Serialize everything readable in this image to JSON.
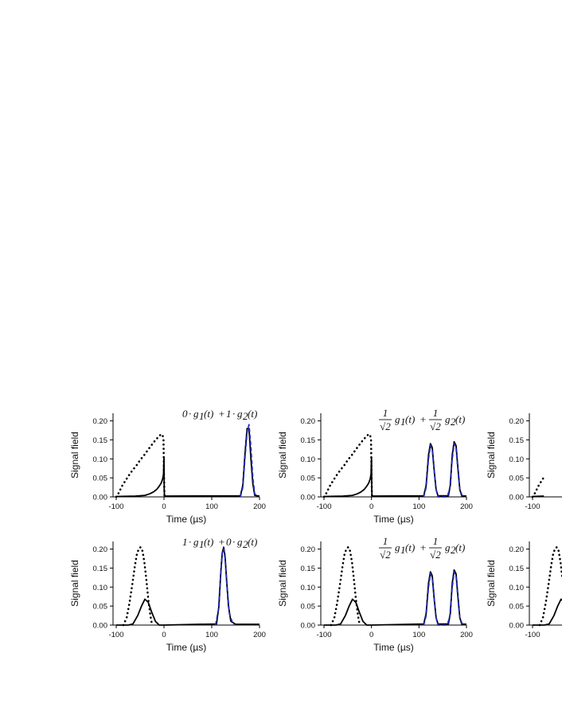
{
  "chart_data": [
    {
      "type": "line",
      "panel": "top-left",
      "formula": [
        "0",
        "·",
        "g",
        "1",
        "(t)",
        "+",
        "1",
        "·",
        "g",
        "2",
        "(t)"
      ],
      "xlabel": "Time (µs)",
      "ylabel": "Signal field",
      "xlim": [
        -100,
        200
      ],
      "ylim": [
        0,
        0.22
      ],
      "xticks": [
        "-100",
        "0",
        "100",
        "200"
      ],
      "yticks": [
        "0.00",
        "0.05",
        "0.10",
        "0.15",
        "0.20"
      ],
      "series": [
        {
          "style": "dotted",
          "color": "#000000",
          "x": [
            -100,
            -97,
            -93,
            -88,
            -82,
            -76,
            -70,
            -64,
            -58,
            -52,
            -46,
            -40,
            -34,
            -28,
            -22,
            -16,
            -10,
            -6,
            -3,
            -1,
            0,
            1
          ],
          "y": [
            0.0,
            0.005,
            0.015,
            0.028,
            0.04,
            0.052,
            0.063,
            0.073,
            0.082,
            0.093,
            0.103,
            0.112,
            0.123,
            0.133,
            0.143,
            0.152,
            0.16,
            0.165,
            0.163,
            0.15,
            0.06,
            0.0
          ]
        },
        {
          "style": "solid",
          "color": "#000000",
          "x": [
            -100,
            -60,
            -40,
            -30,
            -22,
            -15,
            -10,
            -6,
            -3,
            -1,
            0,
            0.5,
            1,
            160,
            165,
            170,
            174,
            178,
            182,
            186,
            190,
            200
          ],
          "y": [
            0.001,
            0.002,
            0.004,
            0.008,
            0.013,
            0.02,
            0.028,
            0.036,
            0.046,
            0.06,
            0.105,
            0.02,
            0.002,
            0.003,
            0.03,
            0.12,
            0.18,
            0.18,
            0.1,
            0.035,
            0.004,
            0.002
          ]
        },
        {
          "style": "dashed",
          "color": "#1f2ac8",
          "x": [
            160,
            165,
            170,
            174,
            178,
            182,
            186,
            190,
            196
          ],
          "y": [
            0.0,
            0.025,
            0.11,
            0.17,
            0.19,
            0.13,
            0.05,
            0.008,
            0.0
          ]
        }
      ]
    },
    {
      "type": "line",
      "panel": "top-middle",
      "formula": [
        "1",
        "√2",
        "g",
        "1",
        "(t)",
        "+",
        "1",
        "√2",
        "g",
        "2",
        "(t)"
      ],
      "xlabel": "Time (µs)",
      "ylabel": "Signal field",
      "xlim": [
        -100,
        200
      ],
      "ylim": [
        0,
        0.22
      ],
      "xticks": [
        "-100",
        "0",
        "100",
        "200"
      ],
      "yticks": [
        "0.00",
        "0.05",
        "0.10",
        "0.15",
        "0.20"
      ],
      "series": [
        {
          "style": "dotted",
          "color": "#000000",
          "x": [
            -100,
            -97,
            -93,
            -88,
            -82,
            -76,
            -70,
            -64,
            -58,
            -52,
            -46,
            -40,
            -34,
            -28,
            -22,
            -16,
            -10,
            -6,
            -3,
            -1,
            0,
            1
          ],
          "y": [
            0.0,
            0.005,
            0.015,
            0.028,
            0.04,
            0.052,
            0.063,
            0.073,
            0.082,
            0.093,
            0.103,
            0.112,
            0.123,
            0.133,
            0.143,
            0.152,
            0.16,
            0.165,
            0.163,
            0.15,
            0.06,
            0.0
          ]
        },
        {
          "style": "solid",
          "color": "#000000",
          "x": [
            -100,
            -60,
            -40,
            -30,
            -22,
            -15,
            -10,
            -6,
            -3,
            -1,
            0,
            0.5,
            1,
            110,
            115,
            120,
            124,
            128,
            132,
            136,
            140,
            162,
            166,
            170,
            174,
            178,
            182,
            186,
            190,
            200
          ],
          "y": [
            0.001,
            0.002,
            0.004,
            0.008,
            0.013,
            0.02,
            0.028,
            0.036,
            0.046,
            0.06,
            0.105,
            0.02,
            0.002,
            0.003,
            0.03,
            0.11,
            0.14,
            0.13,
            0.07,
            0.02,
            0.003,
            0.003,
            0.03,
            0.11,
            0.145,
            0.135,
            0.075,
            0.02,
            0.003,
            0.002
          ]
        },
        {
          "style": "dashed",
          "color": "#1f2ac8",
          "x": [
            110,
            115,
            120,
            124,
            128,
            132,
            136,
            140,
            160,
            165,
            170,
            174,
            178,
            182,
            186,
            192
          ],
          "y": [
            0.0,
            0.025,
            0.1,
            0.135,
            0.125,
            0.07,
            0.02,
            0.0,
            0.0,
            0.025,
            0.1,
            0.14,
            0.13,
            0.07,
            0.02,
            0.0
          ]
        }
      ]
    },
    {
      "type": "line",
      "panel": "top-right",
      "xlim": [
        -100,
        200
      ],
      "ylim": [
        0,
        0.22
      ],
      "xticks": [
        "-100"
      ],
      "yticks": [
        "0.00",
        "0.05",
        "0.10",
        "0.15",
        "0.20"
      ],
      "ylabel": "Signal field",
      "series": [
        {
          "style": "dotted",
          "color": "#000000",
          "x": [
            -100,
            -97,
            -93,
            -88,
            -82,
            -76
          ],
          "y": [
            0.0,
            0.005,
            0.015,
            0.028,
            0.04,
            0.052
          ]
        },
        {
          "style": "solid",
          "color": "#000000",
          "x": [
            -100,
            -76
          ],
          "y": [
            0.001,
            0.002
          ]
        }
      ]
    },
    {
      "type": "line",
      "panel": "bottom-left",
      "formula": [
        "1",
        "·",
        "g",
        "1",
        "(t)",
        "+",
        "0",
        "·",
        "g",
        "2",
        "(t)"
      ],
      "xlabel": "Time (µs)",
      "ylabel": "Signal field",
      "xlim": [
        -100,
        200
      ],
      "ylim": [
        0,
        0.22
      ],
      "xticks": [
        "-100",
        "0",
        "100",
        "200"
      ],
      "yticks": [
        "0.00",
        "0.05",
        "0.10",
        "0.15",
        "0.20"
      ],
      "series": [
        {
          "style": "dotted",
          "color": "#000000",
          "x": [
            -85,
            -78,
            -72,
            -66,
            -61,
            -57,
            -53,
            -49,
            -45,
            -41,
            -37,
            -33,
            -29,
            -25
          ],
          "y": [
            0.0,
            0.02,
            0.06,
            0.11,
            0.155,
            0.185,
            0.2,
            0.205,
            0.195,
            0.165,
            0.12,
            0.07,
            0.03,
            0.0
          ]
        },
        {
          "style": "solid",
          "color": "#000000",
          "x": [
            -100,
            -75,
            -65,
            -55,
            -47,
            -40,
            -33,
            -26,
            -18,
            -10,
            0,
            110,
            115,
            119,
            122,
            125,
            128,
            131,
            135,
            140,
            150,
            200
          ],
          "y": [
            0.0,
            0.0,
            0.003,
            0.025,
            0.05,
            0.068,
            0.06,
            0.035,
            0.01,
            0.0,
            0.0,
            0.003,
            0.05,
            0.14,
            0.19,
            0.205,
            0.18,
            0.12,
            0.05,
            0.01,
            0.002,
            0.002
          ]
        },
        {
          "style": "dashed",
          "color": "#1f2ac8",
          "x": [
            108,
            114,
            118,
            122,
            125,
            128,
            132,
            137,
            145
          ],
          "y": [
            0.0,
            0.04,
            0.12,
            0.19,
            0.2,
            0.175,
            0.1,
            0.03,
            0.0
          ]
        }
      ]
    },
    {
      "type": "line",
      "panel": "bottom-middle",
      "formula": [
        "1",
        "√2",
        "g",
        "1",
        "(t)",
        "+",
        "1",
        "√2",
        "g",
        "2",
        "(t)"
      ],
      "xlabel": "Time (µs)",
      "ylabel": "Signal field",
      "xlim": [
        -100,
        200
      ],
      "ylim": [
        0,
        0.22
      ],
      "xticks": [
        "-100",
        "0",
        "100",
        "200"
      ],
      "yticks": [
        "0.00",
        "0.05",
        "0.10",
        "0.15",
        "0.20"
      ],
      "series": [
        {
          "style": "dotted",
          "color": "#000000",
          "x": [
            -85,
            -78,
            -72,
            -66,
            -61,
            -57,
            -53,
            -49,
            -45,
            -41,
            -37,
            -33,
            -29,
            -25
          ],
          "y": [
            0.0,
            0.02,
            0.06,
            0.11,
            0.155,
            0.185,
            0.2,
            0.205,
            0.195,
            0.165,
            0.12,
            0.07,
            0.03,
            0.0
          ]
        },
        {
          "style": "solid",
          "color": "#000000",
          "x": [
            -100,
            -75,
            -65,
            -55,
            -47,
            -40,
            -33,
            -26,
            -18,
            -10,
            0,
            110,
            115,
            120,
            124,
            128,
            132,
            136,
            140,
            162,
            166,
            170,
            174,
            178,
            182,
            186,
            190,
            200
          ],
          "y": [
            0.0,
            0.0,
            0.003,
            0.025,
            0.05,
            0.068,
            0.06,
            0.035,
            0.01,
            0.0,
            0.0,
            0.003,
            0.03,
            0.11,
            0.14,
            0.13,
            0.07,
            0.02,
            0.003,
            0.003,
            0.03,
            0.11,
            0.145,
            0.135,
            0.075,
            0.02,
            0.003,
            0.002
          ]
        },
        {
          "style": "dashed",
          "color": "#1f2ac8",
          "x": [
            110,
            115,
            120,
            124,
            128,
            132,
            136,
            140,
            160,
            165,
            170,
            174,
            178,
            182,
            186,
            192
          ],
          "y": [
            0.0,
            0.025,
            0.1,
            0.135,
            0.125,
            0.07,
            0.02,
            0.0,
            0.0,
            0.025,
            0.1,
            0.14,
            0.13,
            0.07,
            0.02,
            0.0
          ]
        }
      ]
    },
    {
      "type": "line",
      "panel": "bottom-right",
      "xlim": [
        -100,
        200
      ],
      "ylim": [
        0,
        0.22
      ],
      "xticks": [
        "-100"
      ],
      "yticks": [
        "0.00",
        "0.05",
        "0.10",
        "0.15",
        "0.20"
      ],
      "ylabel": "Signal field",
      "series": [
        {
          "style": "dotted",
          "color": "#000000",
          "x": [
            -85,
            -78,
            -72,
            -66,
            -61,
            -57,
            -53,
            -49,
            -45,
            -41,
            -37
          ],
          "y": [
            0.0,
            0.02,
            0.06,
            0.11,
            0.155,
            0.185,
            0.2,
            0.205,
            0.195,
            0.165,
            0.12
          ]
        },
        {
          "style": "solid",
          "color": "#000000",
          "x": [
            -100,
            -75,
            -65,
            -55,
            -47,
            -40,
            -33
          ],
          "y": [
            0.0,
            0.0,
            0.003,
            0.025,
            0.05,
            0.068,
            0.06
          ]
        }
      ]
    }
  ]
}
